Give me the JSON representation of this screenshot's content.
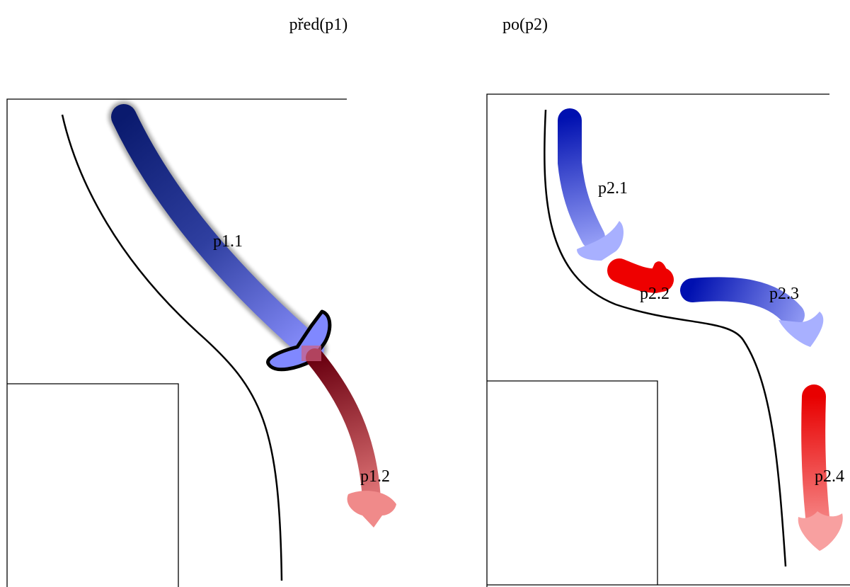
{
  "panels": [
    {
      "title": "před(p1)",
      "arrows": [
        {
          "label": "p1.1"
        },
        {
          "label": "p1.2"
        }
      ]
    },
    {
      "title": "po(p2)",
      "arrows": [
        {
          "label": "p2.1"
        },
        {
          "label": "p2.2"
        },
        {
          "label": "p2.3"
        },
        {
          "label": "p2.4"
        }
      ]
    }
  ]
}
